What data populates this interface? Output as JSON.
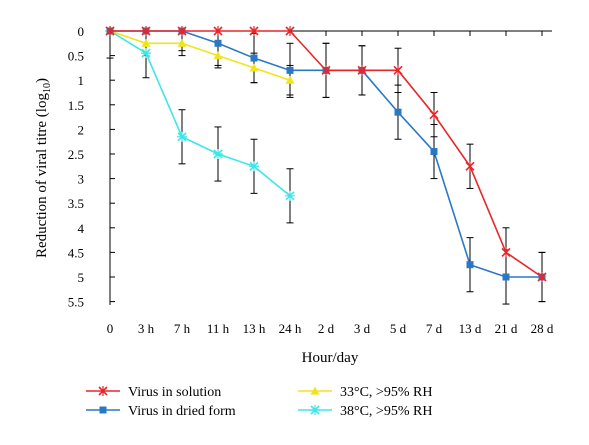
{
  "chart_data": {
    "type": "line",
    "title": "",
    "xlabel": "Hour/day",
    "ylabel": "Reduction of viral titre (log",
    "ylabel_subscript": "10",
    "ylabel_suffix": ")",
    "y_inverted": true,
    "ylim": [
      0,
      5.5
    ],
    "y_ticks": [
      "0",
      "0.5",
      "1",
      "1.5",
      "2",
      "2.5",
      "3",
      "3.5",
      "4",
      "4.5",
      "5",
      "5.5"
    ],
    "y_tick_values": [
      0,
      0.5,
      1,
      1.5,
      2,
      2.5,
      3,
      3.5,
      4,
      4.5,
      5,
      5.5
    ],
    "categories": [
      "0",
      "3 h",
      "7 h",
      "11 h",
      "13 h",
      "24 h",
      "2 d",
      "3 d",
      "5 d",
      "7 d",
      "13 d",
      "21 d",
      "28 d"
    ],
    "grid": false,
    "legend_position": "bottom",
    "series": [
      {
        "name": "Virus in solution",
        "color": "#e8262a",
        "marker": "x",
        "values": [
          0,
          0,
          0,
          0,
          0,
          0,
          0.8,
          0.8,
          0.8,
          1.7,
          2.75,
          4.5,
          5.0
        ],
        "errors": [
          null,
          null,
          null,
          null,
          null,
          null,
          0.55,
          0.5,
          0.45,
          0.45,
          0.45,
          0.5,
          0.5
        ]
      },
      {
        "name": "Virus in dried form",
        "color": "#2a78c4",
        "marker": "square",
        "values": [
          0,
          0,
          0,
          0.25,
          0.55,
          0.8,
          0.8,
          0.8,
          1.65,
          2.45,
          4.75,
          5.0,
          5.0
        ],
        "errors": [
          0.55,
          0.45,
          0.4,
          0.45,
          0.5,
          0.55,
          0.55,
          0.5,
          0.55,
          0.55,
          0.55,
          0.55,
          0.5
        ]
      },
      {
        "name": "33°C, >95% RH",
        "color": "#f2e41a",
        "marker": "triangle",
        "values": [
          0,
          0.25,
          0.25,
          0.5,
          0.75,
          1.0,
          null,
          null,
          null,
          null,
          null,
          null,
          null
        ],
        "errors": [
          null,
          0.25,
          0.25,
          0.25,
          0.3,
          0.3,
          null,
          null,
          null,
          null,
          null,
          null,
          null
        ]
      },
      {
        "name": "38°C, >95% RH",
        "color": "#3ee6ea",
        "marker": "star",
        "values": [
          0,
          0.45,
          2.15,
          2.5,
          2.75,
          3.35,
          null,
          null,
          null,
          null,
          null,
          null,
          null
        ],
        "errors": [
          null,
          0.5,
          0.55,
          0.55,
          0.55,
          0.55,
          null,
          null,
          null,
          null,
          null,
          null,
          null
        ]
      }
    ]
  }
}
